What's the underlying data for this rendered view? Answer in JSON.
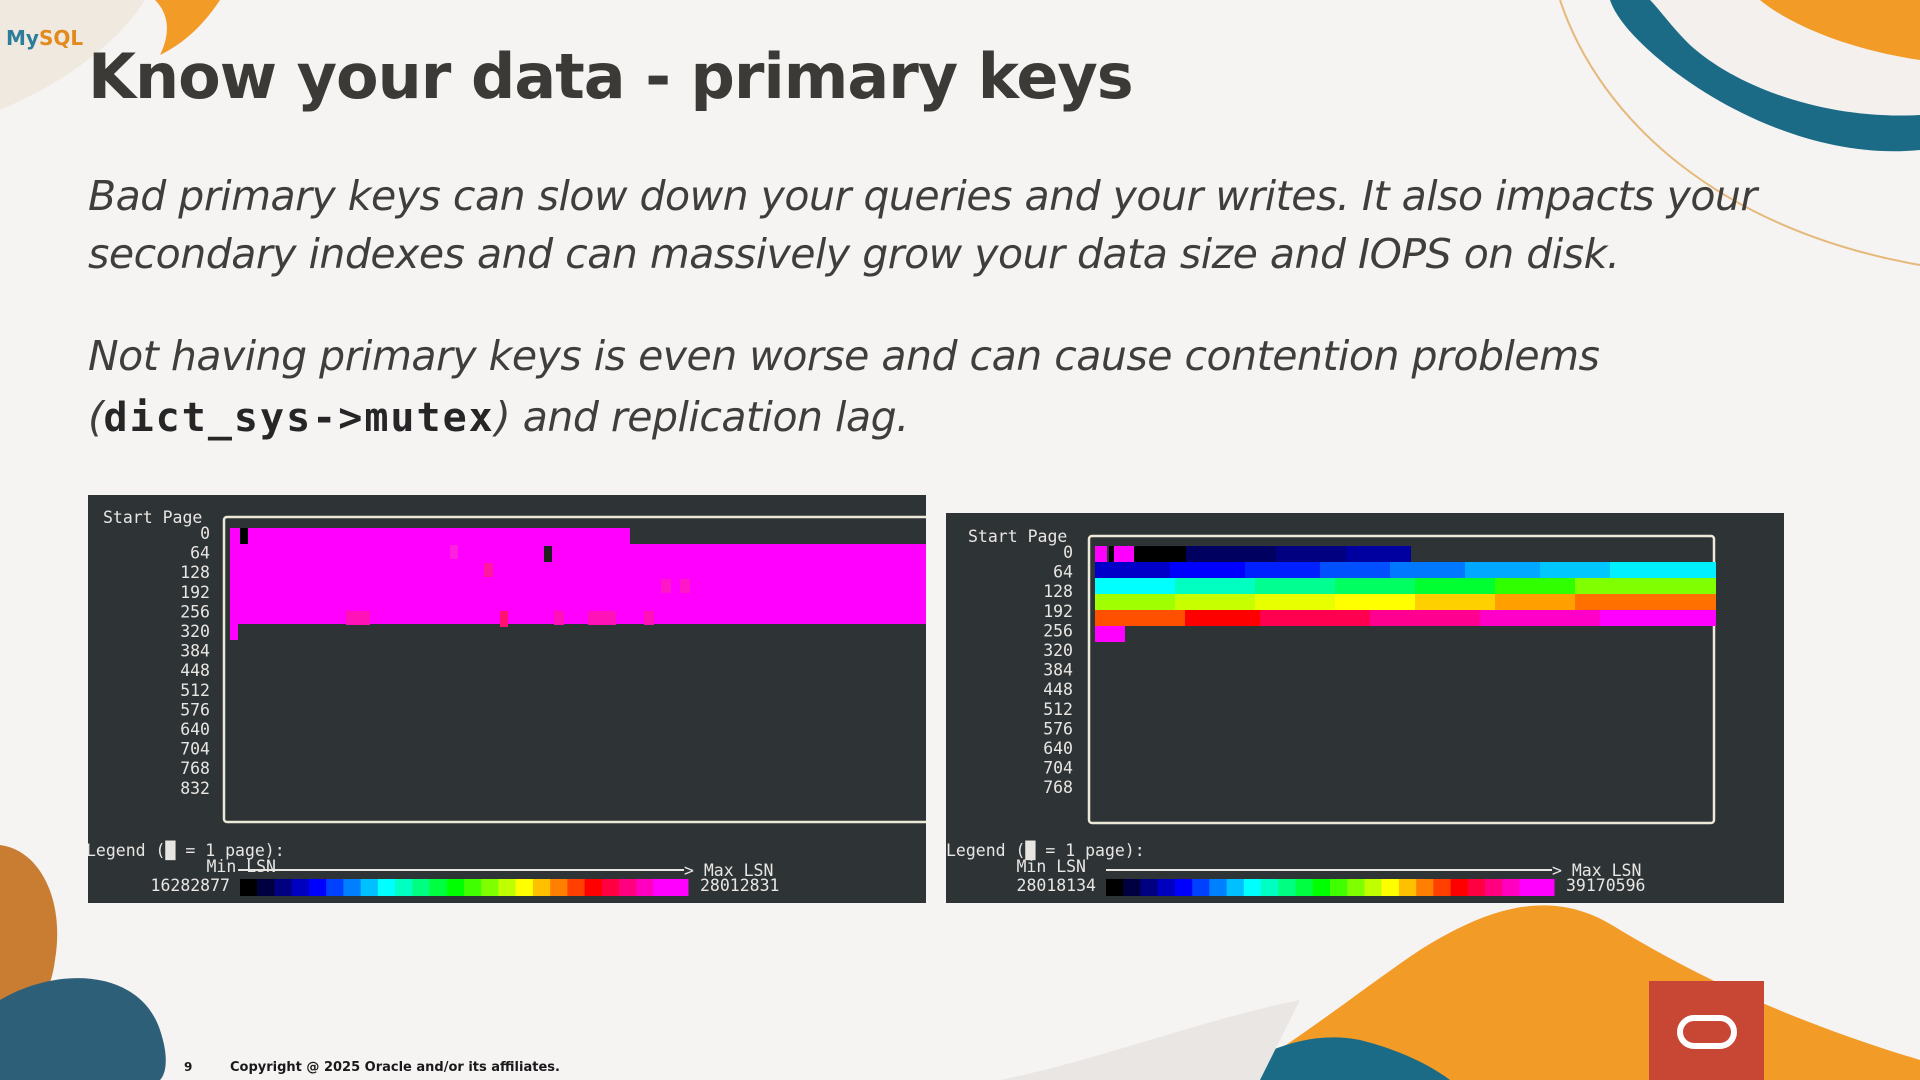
{
  "logo": {
    "part1": "My",
    "part2": "SQL"
  },
  "title": "Know your data - primary keys",
  "paragraphs": {
    "p1_line": "Bad primary keys can slow down your queries and your writes. It also impacts your secondary indexes and can massively grow your data size and IOPS on disk.",
    "p2_before": "Not having primary keys is even worse and can cause contention problems (",
    "p2_code": "dict_sys->mutex",
    "p2_after": ") and replication lag."
  },
  "panels": [
    {
      "header": "Start Page",
      "rows": [
        "0",
        "64",
        "128",
        "192",
        "256",
        "320",
        "384",
        "448",
        "512",
        "576",
        "640",
        "704",
        "768",
        "832"
      ],
      "legend_label": "Legend (█ = 1 page):",
      "min_label": "Min LSN",
      "max_label": "> Max LSN",
      "min_value": "16282877",
      "max_value": "28012831"
    },
    {
      "header": "Start Page",
      "rows": [
        "0",
        "64",
        "128",
        "192",
        "256",
        "320",
        "384",
        "448",
        "512",
        "576",
        "640",
        "704",
        "768"
      ],
      "legend_label": "Legend (█ = 1 page):",
      "min_label": "Min LSN",
      "max_label": "> Max LSN",
      "min_value": "28018134",
      "max_value": "39170596"
    }
  ],
  "footer": {
    "page_number": "9",
    "copyright": "Copyright @ 2025 Oracle and/or its affiliates."
  },
  "colors": {
    "panel_bg": "#2e3436",
    "magenta": "#ff00ff",
    "oracle_red": "#c74634",
    "teal": "#1b6b86",
    "orange": "#f29b26"
  }
}
